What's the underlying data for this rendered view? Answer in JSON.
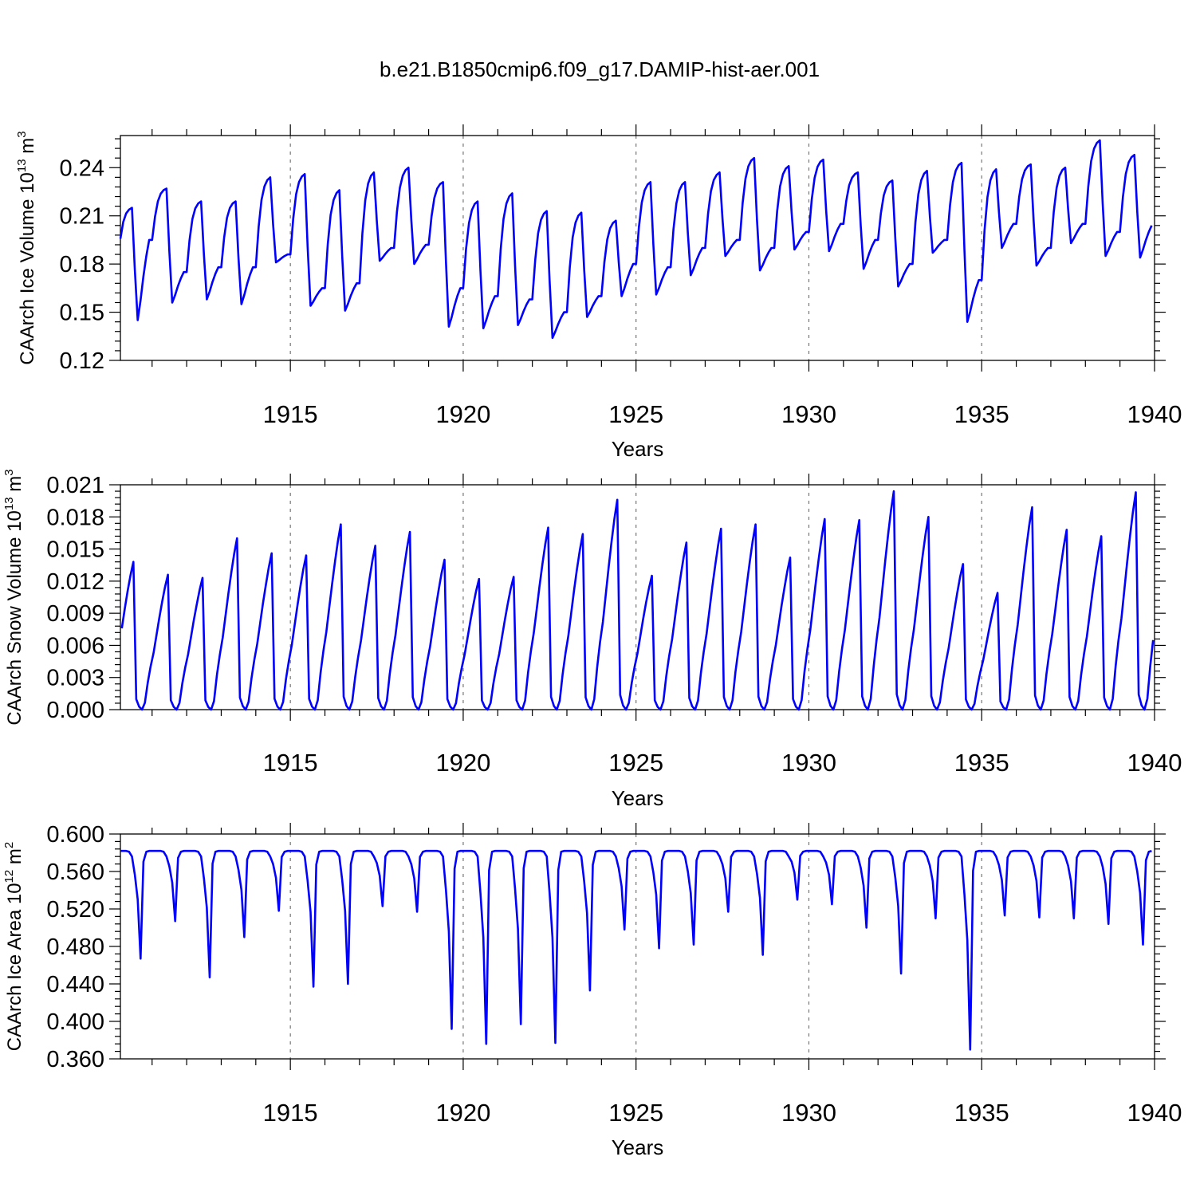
{
  "title": "b.e21.B1850cmip6.f09_g17.DAMIP-hist-aer.001",
  "colors": {
    "series": "#0000ff",
    "axes": "#000000",
    "grid": "#777777"
  },
  "chart_data": [
    {
      "type": "line",
      "ylabel": {
        "main": "CAArch Ice Volume 10",
        "sup1": "13",
        "mid": " m",
        "sup2": "3"
      },
      "xlabel": "Years",
      "xlim": [
        1910.083,
        1940.0
      ],
      "ylim": [
        0.12,
        0.26
      ],
      "x_ticks": [
        1915,
        1920,
        1925,
        1930,
        1935,
        1940
      ],
      "x_tick_labels": [
        "1915",
        "1920",
        "1925",
        "1930",
        "1935",
        "1940"
      ],
      "y_ticks": [
        0.12,
        0.15,
        0.18,
        0.21,
        0.24
      ],
      "y_tick_labels": [
        "0.12",
        "0.15",
        "0.18",
        "0.21",
        "0.24"
      ],
      "grid": "dashed vertical at labeled years",
      "series": [
        {
          "name": "CAArch Ice Volume",
          "annual_cycles": [
            {
              "year": 1910,
              "max": 0.215,
              "min": 0.145,
              "end": 0.195
            },
            {
              "year": 1911,
              "max": 0.227,
              "min": 0.156,
              "end": 0.175
            },
            {
              "year": 1912,
              "max": 0.219,
              "min": 0.158,
              "end": 0.178
            },
            {
              "year": 1913,
              "max": 0.219,
              "min": 0.155,
              "end": 0.178
            },
            {
              "year": 1914,
              "max": 0.234,
              "min": 0.181,
              "end": 0.186
            },
            {
              "year": 1915,
              "max": 0.236,
              "min": 0.154,
              "end": 0.165
            },
            {
              "year": 1916,
              "max": 0.226,
              "min": 0.151,
              "end": 0.168
            },
            {
              "year": 1917,
              "max": 0.237,
              "min": 0.182,
              "end": 0.19
            },
            {
              "year": 1918,
              "max": 0.24,
              "min": 0.18,
              "end": 0.192
            },
            {
              "year": 1919,
              "max": 0.231,
              "min": 0.141,
              "end": 0.165
            },
            {
              "year": 1920,
              "max": 0.219,
              "min": 0.14,
              "end": 0.16
            },
            {
              "year": 1921,
              "max": 0.224,
              "min": 0.142,
              "end": 0.158
            },
            {
              "year": 1922,
              "max": 0.213,
              "min": 0.134,
              "end": 0.15
            },
            {
              "year": 1923,
              "max": 0.212,
              "min": 0.147,
              "end": 0.16
            },
            {
              "year": 1924,
              "max": 0.207,
              "min": 0.16,
              "end": 0.18
            },
            {
              "year": 1925,
              "max": 0.231,
              "min": 0.161,
              "end": 0.178
            },
            {
              "year": 1926,
              "max": 0.231,
              "min": 0.173,
              "end": 0.19
            },
            {
              "year": 1927,
              "max": 0.237,
              "min": 0.185,
              "end": 0.195
            },
            {
              "year": 1928,
              "max": 0.246,
              "min": 0.176,
              "end": 0.19
            },
            {
              "year": 1929,
              "max": 0.241,
              "min": 0.189,
              "end": 0.2
            },
            {
              "year": 1930,
              "max": 0.245,
              "min": 0.188,
              "end": 0.205
            },
            {
              "year": 1931,
              "max": 0.237,
              "min": 0.177,
              "end": 0.195
            },
            {
              "year": 1932,
              "max": 0.232,
              "min": 0.166,
              "end": 0.18
            },
            {
              "year": 1933,
              "max": 0.238,
              "min": 0.187,
              "end": 0.195
            },
            {
              "year": 1934,
              "max": 0.243,
              "min": 0.144,
              "end": 0.17
            },
            {
              "year": 1935,
              "max": 0.239,
              "min": 0.19,
              "end": 0.205
            },
            {
              "year": 1936,
              "max": 0.242,
              "min": 0.179,
              "end": 0.19
            },
            {
              "year": 1937,
              "max": 0.24,
              "min": 0.193,
              "end": 0.205
            },
            {
              "year": 1938,
              "max": 0.257,
              "min": 0.185,
              "end": 0.2
            },
            {
              "year": 1939,
              "max": 0.248,
              "min": 0.184,
              "end": 0.204
            }
          ]
        }
      ]
    },
    {
      "type": "line",
      "ylabel": {
        "main": "CAArch Snow Volume 10",
        "sup1": "13",
        "mid": " m",
        "sup2": "3"
      },
      "xlabel": "Years",
      "xlim": [
        1910.083,
        1940.0
      ],
      "ylim": [
        0.0,
        0.021
      ],
      "x_ticks": [
        1915,
        1920,
        1925,
        1930,
        1935,
        1940
      ],
      "x_tick_labels": [
        "1915",
        "1920",
        "1925",
        "1930",
        "1935",
        "1940"
      ],
      "y_ticks": [
        0.0,
        0.003,
        0.006,
        0.009,
        0.012,
        0.015,
        0.018,
        0.021
      ],
      "y_tick_labels": [
        "0.000",
        "0.003",
        "0.006",
        "0.009",
        "0.012",
        "0.015",
        "0.018",
        "0.021"
      ],
      "grid": "dashed vertical at labeled years",
      "series": [
        {
          "name": "CAArch Snow Volume",
          "annual_peaks": [
            {
              "year": 1910,
              "peak": 0.0138
            },
            {
              "year": 1911,
              "peak": 0.0126
            },
            {
              "year": 1912,
              "peak": 0.0123
            },
            {
              "year": 1913,
              "peak": 0.016
            },
            {
              "year": 1914,
              "peak": 0.0146
            },
            {
              "year": 1915,
              "peak": 0.0144
            },
            {
              "year": 1916,
              "peak": 0.0173
            },
            {
              "year": 1917,
              "peak": 0.0153
            },
            {
              "year": 1918,
              "peak": 0.0166
            },
            {
              "year": 1919,
              "peak": 0.014
            },
            {
              "year": 1920,
              "peak": 0.0122
            },
            {
              "year": 1921,
              "peak": 0.0124
            },
            {
              "year": 1922,
              "peak": 0.017
            },
            {
              "year": 1923,
              "peak": 0.0164
            },
            {
              "year": 1924,
              "peak": 0.0196
            },
            {
              "year": 1925,
              "peak": 0.0125
            },
            {
              "year": 1926,
              "peak": 0.0156
            },
            {
              "year": 1927,
              "peak": 0.0169
            },
            {
              "year": 1928,
              "peak": 0.0173
            },
            {
              "year": 1929,
              "peak": 0.0142
            },
            {
              "year": 1930,
              "peak": 0.0178
            },
            {
              "year": 1931,
              "peak": 0.0177
            },
            {
              "year": 1932,
              "peak": 0.0204
            },
            {
              "year": 1933,
              "peak": 0.018
            },
            {
              "year": 1934,
              "peak": 0.0136
            },
            {
              "year": 1935,
              "peak": 0.0109
            },
            {
              "year": 1936,
              "peak": 0.0189
            },
            {
              "year": 1937,
              "peak": 0.0168
            },
            {
              "year": 1938,
              "peak": 0.0162
            },
            {
              "year": 1939,
              "peak": 0.0203
            }
          ]
        }
      ]
    },
    {
      "type": "line",
      "ylabel": {
        "main": "CAArch Ice Area 10",
        "sup1": "12",
        "mid": " m",
        "sup2": "2"
      },
      "xlabel": "Years",
      "xlim": [
        1910.083,
        1940.0
      ],
      "ylim": [
        0.36,
        0.6
      ],
      "x_ticks": [
        1915,
        1920,
        1925,
        1930,
        1935,
        1940
      ],
      "x_tick_labels": [
        "1915",
        "1920",
        "1925",
        "1930",
        "1935",
        "1940"
      ],
      "y_ticks": [
        0.36,
        0.4,
        0.44,
        0.48,
        0.52,
        0.56,
        0.6
      ],
      "y_tick_labels": [
        "0.360",
        "0.400",
        "0.440",
        "0.480",
        "0.520",
        "0.560",
        "0.600"
      ],
      "grid": "dashed vertical at labeled years",
      "series": [
        {
          "name": "CAArch Ice Area",
          "plateau": 0.582,
          "annual_minima": [
            {
              "year": 1910,
              "min": 0.467
            },
            {
              "year": 1911,
              "min": 0.507
            },
            {
              "year": 1912,
              "min": 0.447
            },
            {
              "year": 1913,
              "min": 0.49
            },
            {
              "year": 1914,
              "min": 0.518
            },
            {
              "year": 1915,
              "min": 0.437
            },
            {
              "year": 1916,
              "min": 0.44
            },
            {
              "year": 1917,
              "min": 0.523
            },
            {
              "year": 1918,
              "min": 0.517
            },
            {
              "year": 1919,
              "min": 0.392
            },
            {
              "year": 1920,
              "min": 0.376
            },
            {
              "year": 1921,
              "min": 0.397
            },
            {
              "year": 1922,
              "min": 0.377
            },
            {
              "year": 1923,
              "min": 0.433
            },
            {
              "year": 1924,
              "min": 0.498
            },
            {
              "year": 1925,
              "min": 0.478
            },
            {
              "year": 1926,
              "min": 0.482
            },
            {
              "year": 1927,
              "min": 0.517
            },
            {
              "year": 1928,
              "min": 0.471
            },
            {
              "year": 1929,
              "min": 0.53
            },
            {
              "year": 1930,
              "min": 0.525
            },
            {
              "year": 1931,
              "min": 0.5
            },
            {
              "year": 1932,
              "min": 0.451
            },
            {
              "year": 1933,
              "min": 0.51
            },
            {
              "year": 1934,
              "min": 0.37
            },
            {
              "year": 1935,
              "min": 0.513
            },
            {
              "year": 1936,
              "min": 0.511
            },
            {
              "year": 1937,
              "min": 0.51
            },
            {
              "year": 1938,
              "min": 0.504
            },
            {
              "year": 1939,
              "min": 0.482
            }
          ]
        }
      ]
    }
  ]
}
